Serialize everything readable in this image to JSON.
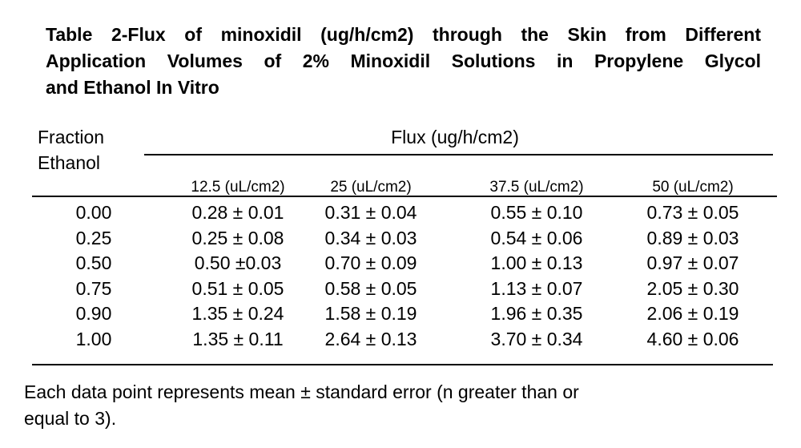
{
  "title": [
    "Table 2-Flux of minoxidil (ug/h/cm2) through the Skin from Different",
    "Application Volumes of 2% Minoxidil Solutions in Propylene Glycol",
    "and Ethanol In Vitro"
  ],
  "table": {
    "row_header": [
      "Fraction",
      "Ethanol"
    ],
    "group_header": "Flux (ug/h/cm2)",
    "columns": [
      "12.5 (uL/cm2)",
      "25 (uL/cm2)",
      "37.5 (uL/cm2)",
      "50 (uL/cm2)"
    ],
    "rows": [
      [
        "0.00",
        "0.28 ± 0.01",
        "0.31 ± 0.04",
        "0.55 ± 0.10",
        "0.73 ± 0.05"
      ],
      [
        "0.25",
        "0.25 ± 0.08",
        "0.34 ± 0.03",
        "0.54 ± 0.06",
        "0.89 ± 0.03"
      ],
      [
        "0.50",
        "0.50 ±0.03",
        "0.70 ± 0.09",
        "1.00 ± 0.13",
        "0.97 ± 0.07"
      ],
      [
        "0.75",
        "0.51 ± 0.05",
        "0.58 ± 0.05",
        "1.13 ± 0.07",
        "2.05 ± 0.30"
      ],
      [
        "0.90",
        "1.35 ± 0.24",
        "1.58 ± 0.19",
        "1.96 ± 0.35",
        "2.06 ± 0.19"
      ],
      [
        "1.00",
        "1.35 ± 0.11",
        "2.64 ± 0.13",
        "3.70 ± 0.34",
        "4.60 ± 0.06"
      ]
    ]
  },
  "footnote": [
    "Each data point represents mean ± standard error (n greater than or",
    "equal to 3)."
  ]
}
